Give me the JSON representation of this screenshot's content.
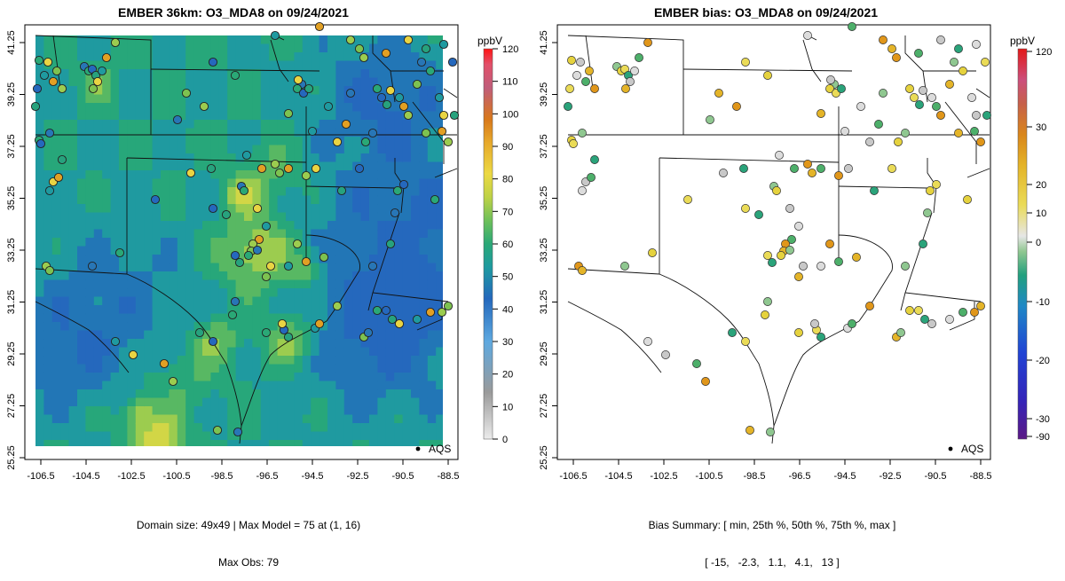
{
  "left_panel": {
    "title": "EMBER 36km: O3_MDA8 on 09/24/2021",
    "colorbar": {
      "unit": "ppbV",
      "ticks": [
        0,
        10,
        20,
        30,
        40,
        50,
        60,
        70,
        80,
        90,
        100,
        110,
        120
      ],
      "range": [
        0,
        120
      ]
    },
    "legend": "AQS",
    "footer_line1": "Domain size: 49x49 | Max Model = 75 at (1, 16)",
    "footer_line2": "Max Obs: 79"
  },
  "right_panel": {
    "title": "EMBER bias: O3_MDA8 on 09/24/2021",
    "colorbar": {
      "unit": "ppbV",
      "ticks": [
        120,
        30,
        20,
        10,
        0,
        -10,
        -20,
        -30,
        -90
      ]
    },
    "legend": "AQS",
    "footer_line1": "Bias Summary: [ min, 25th %, 50th %, 75th %, max ]",
    "footer_line2": "[ -15,   -2.3,   1.1,   4.1,   13 ]"
  },
  "axes": {
    "x_ticks": [
      "-106.5",
      "-104.5",
      "-102.5",
      "-100.5",
      "-98.5",
      "-96.5",
      "-94.5",
      "-92.5",
      "-90.5",
      "-88.5"
    ],
    "y_ticks": [
      "41.25",
      "39.25",
      "37.25",
      "35.25",
      "33.25",
      "31.25",
      "29.25",
      "27.25",
      "25.25"
    ]
  },
  "colors": {
    "ozone_scale": [
      "#e8e8e8",
      "#8a8a8a",
      "#6cb2e6",
      "#2a70c2",
      "#21a28e",
      "#7dc250",
      "#e7d94a",
      "#e2901c",
      "#c5567e",
      "#ff2a2a"
    ],
    "bias_scale": [
      "#6b1e8a",
      "#2a2ad0",
      "#1f8fcf",
      "#2aa37a",
      "#e0e0e0",
      "#e8d23a",
      "#e0961a",
      "#d62020"
    ]
  }
}
